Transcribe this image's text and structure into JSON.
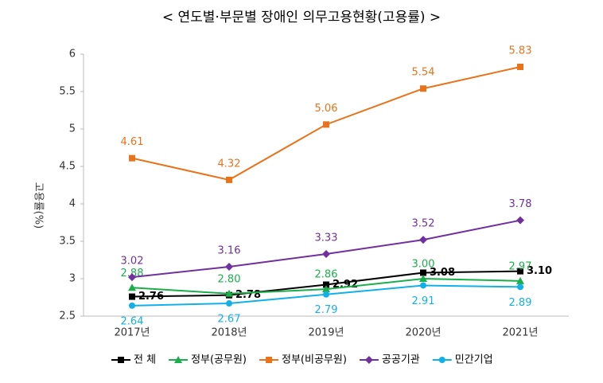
{
  "chart_data": {
    "type": "line",
    "title": "< 연도별·부문별 장애인 의무고용현황(고용률) >",
    "y_label": "고용률(%)",
    "categories": [
      "2017년",
      "2018년",
      "2019년",
      "2020년",
      "2021년"
    ],
    "series": [
      {
        "name": "전 체",
        "color": "#000000",
        "marker": "square",
        "values": [
          2.76,
          2.78,
          2.92,
          3.08,
          3.1
        ],
        "value_labels": [
          "2.76",
          "2.78",
          "2.92",
          "3.08",
          "3.10"
        ]
      },
      {
        "name": "정부(공무원)",
        "color": "#1aaf4b",
        "marker": "triangle",
        "values": [
          2.88,
          2.8,
          2.86,
          3.0,
          2.97
        ],
        "value_labels": [
          "2.88",
          "2.80",
          "2.86",
          "3.00",
          "2.97"
        ]
      },
      {
        "name": "정부(비공무원)",
        "color": "#e8731a",
        "marker": "square",
        "values": [
          4.61,
          4.32,
          5.06,
          5.54,
          5.83
        ]
      },
      {
        "name": "공공기관",
        "color": "#7030a0",
        "marker": "diamond",
        "values": [
          3.02,
          3.16,
          3.33,
          3.52,
          3.78
        ]
      },
      {
        "name": "민간기업",
        "color": "#12b0e8",
        "marker": "circle",
        "values": [
          2.64,
          2.67,
          2.79,
          2.91,
          2.89
        ]
      }
    ],
    "ylim": [
      2.5,
      6
    ],
    "yticks": [
      2.5,
      3,
      3.5,
      4,
      4.5,
      5,
      5.5,
      6
    ],
    "grid": false
  }
}
